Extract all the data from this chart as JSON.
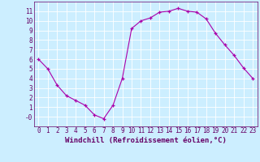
{
  "x": [
    0,
    1,
    2,
    3,
    4,
    5,
    6,
    7,
    8,
    9,
    10,
    11,
    12,
    13,
    14,
    15,
    16,
    17,
    18,
    19,
    20,
    21,
    22,
    23
  ],
  "y": [
    6.0,
    5.0,
    3.3,
    2.2,
    1.7,
    1.2,
    0.2,
    -0.2,
    1.2,
    4.0,
    9.2,
    10.0,
    10.3,
    10.9,
    11.0,
    11.3,
    11.0,
    10.9,
    10.2,
    8.7,
    7.5,
    6.4,
    5.1,
    4.0
  ],
  "line_color": "#aa00aa",
  "marker": "+",
  "marker_color": "#aa00aa",
  "xlabel": "Windchill (Refroidissement éolien,°C)",
  "xlim": [
    -0.5,
    23.5
  ],
  "ylim": [
    -1.0,
    12.0
  ],
  "bg_color": "#cceeff",
  "grid_color": "#ffffff",
  "xticks": [
    0,
    1,
    2,
    3,
    4,
    5,
    6,
    7,
    8,
    9,
    10,
    11,
    12,
    13,
    14,
    15,
    16,
    17,
    18,
    19,
    20,
    21,
    22,
    23
  ],
  "yticks": [
    0,
    1,
    2,
    3,
    4,
    5,
    6,
    7,
    8,
    9,
    10,
    11
  ],
  "tick_fontsize": 5.5,
  "xlabel_fontsize": 6.5,
  "line_width": 0.8,
  "marker_size": 3.0
}
